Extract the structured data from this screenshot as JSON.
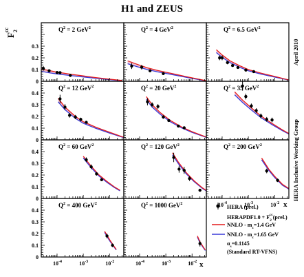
{
  "title": "H1 and ZEUS",
  "ylabel": "F",
  "ylabel_sub": "2",
  "ylabel_sup": "cc",
  "xlabel": "x",
  "side_labels": {
    "top": "April 2010",
    "middle": "HERA Inclusive Working Group"
  },
  "legend": {
    "items": [
      {
        "key": "data",
        "label": "HERA (prel.)",
        "color": "#000000"
      },
      {
        "key": "herapdf",
        "label": "HERAPDF1.0 + F2cc(prel.)",
        "label_main": "HERAPDF1.0 + F",
        "label_sub": "2",
        "label_sup": "cc",
        "label_end": "(prel.)",
        "color": "#000000"
      },
      {
        "key": "mc14",
        "label": "NNLO - mc=1.4 GeV",
        "label_main": "NNLO  -  m",
        "label_sub": "c",
        "label_end": "=1.4 GeV",
        "color": "#e41a1c"
      },
      {
        "key": "mc165",
        "label": "NNLO - mc=1.65 GeV",
        "label_main": "NNLO  -  m",
        "label_sub": "c",
        "label_end": "=1.65 GeV",
        "color": "#3a3ad9"
      }
    ],
    "alpha_text": "α",
    "alpha_sub": "s",
    "alpha_value": "=0.1145",
    "scheme": "(Standard RT-VFNS)"
  },
  "colors": {
    "band": "#e8a0b0",
    "red": "#e41a1c",
    "blue": "#3a3ad9",
    "data": "#000000"
  },
  "chart_data": {
    "type": "scatter",
    "title": "H1 and ZEUS",
    "xlabel": "x",
    "ylabel": "F2cc",
    "xscale": "log",
    "xlim": [
      2.5e-05,
      0.035
    ],
    "ylim": [
      0,
      0.5
    ],
    "x_ticks": [
      "10-4",
      "10-3",
      "10-2"
    ],
    "y_ticks": [
      "0",
      "0.1",
      "0.2",
      "0.3",
      "0.4"
    ],
    "y_ticks_top_row": [
      "0",
      "0.1",
      "0.2",
      "0.3"
    ],
    "panels": [
      {
        "label": "Q2 = 2 GeV2",
        "q2": "2",
        "points": [
          [
            3e-05,
            0.11,
            0.02
          ],
          [
            5e-05,
            0.09,
            0.012
          ],
          [
            0.0001,
            0.075,
            0.01
          ],
          [
            0.00013,
            0.074,
            0.01
          ],
          [
            0.00032,
            0.05,
            0.006
          ]
        ],
        "curves": {
          "red": [
            [
              2.5e-05,
              0.105
            ],
            [
              5e-05,
              0.092
            ],
            [
              0.0001,
              0.078
            ],
            [
              0.0003,
              0.062
            ],
            [
              0.001,
              0.046
            ],
            [
              0.003,
              0.032
            ],
            [
              0.01,
              0.018
            ],
            [
              0.03,
              0.007
            ]
          ],
          "blue": [
            [
              2.5e-05,
              0.085
            ],
            [
              5e-05,
              0.073
            ],
            [
              0.0001,
              0.063
            ],
            [
              0.0003,
              0.05
            ],
            [
              0.001,
              0.037
            ],
            [
              0.003,
              0.026
            ],
            [
              0.01,
              0.014
            ],
            [
              0.03,
              0.005
            ]
          ]
        }
      },
      {
        "label": "Q2 = 4 GeV2",
        "q2": "4",
        "points": [
          [
            5e-05,
            0.13,
            0.025
          ],
          [
            0.00012,
            0.12,
            0.02
          ],
          [
            0.00025,
            0.09,
            0.01
          ],
          [
            0.0008,
            0.066,
            0.008
          ]
        ],
        "curves": {
          "red": [
            [
              3.5e-05,
              0.175
            ],
            [
              8e-05,
              0.145
            ],
            [
              0.0002,
              0.115
            ],
            [
              0.0005,
              0.092
            ],
            [
              0.002,
              0.063
            ],
            [
              0.006,
              0.04
            ],
            [
              0.02,
              0.016
            ],
            [
              0.035,
              0.005
            ]
          ],
          "blue": [
            [
              3.5e-05,
              0.15
            ],
            [
              8e-05,
              0.125
            ],
            [
              0.0002,
              0.1
            ],
            [
              0.0005,
              0.08
            ],
            [
              0.002,
              0.055
            ],
            [
              0.006,
              0.034
            ],
            [
              0.02,
              0.013
            ],
            [
              0.035,
              0.004
            ]
          ]
        }
      },
      {
        "label": "Q2 = 6.5 GeV2",
        "q2": "6.5",
        "points": [
          [
            8e-05,
            0.2,
            0.02
          ],
          [
            0.0001,
            0.2,
            0.02
          ],
          [
            0.00016,
            0.16,
            0.015
          ],
          [
            0.00025,
            0.135,
            0.01
          ],
          [
            0.0004,
            0.118,
            0.01
          ],
          [
            0.0008,
            0.096,
            0.008
          ],
          [
            0.0016,
            0.083,
            0.008
          ]
        ],
        "curves": {
          "red": [
            [
              6e-05,
              0.27
            ],
            [
              0.0001,
              0.225
            ],
            [
              0.0002,
              0.175
            ],
            [
              0.0005,
              0.13
            ],
            [
              0.001,
              0.1
            ],
            [
              0.003,
              0.07
            ],
            [
              0.01,
              0.042
            ],
            [
              0.035,
              0.012
            ]
          ],
          "blue": [
            [
              6e-05,
              0.245
            ],
            [
              0.0001,
              0.205
            ],
            [
              0.0002,
              0.16
            ],
            [
              0.0005,
              0.117
            ],
            [
              0.001,
              0.09
            ],
            [
              0.003,
              0.062
            ],
            [
              0.01,
              0.036
            ],
            [
              0.035,
              0.01
            ]
          ]
        }
      },
      {
        "label": "Q2 = 12 GeV2",
        "q2": "12",
        "points": [
          [
            0.00013,
            0.35,
            0.035
          ],
          [
            0.0002,
            0.28,
            0.025
          ],
          [
            0.0003,
            0.21,
            0.02
          ],
          [
            0.0005,
            0.195,
            0.018
          ],
          [
            0.0008,
            0.175,
            0.015
          ],
          [
            0.0013,
            0.15,
            0.012
          ]
        ],
        "curves": {
          "red": [
            [
              0.00011,
              0.355
            ],
            [
              0.0002,
              0.28
            ],
            [
              0.0005,
              0.2
            ],
            [
              0.001,
              0.155
            ],
            [
              0.003,
              0.108
            ],
            [
              0.01,
              0.065
            ],
            [
              0.035,
              0.022
            ]
          ],
          "blue": [
            [
              0.00011,
              0.325
            ],
            [
              0.0002,
              0.258
            ],
            [
              0.0005,
              0.183
            ],
            [
              0.001,
              0.142
            ],
            [
              0.003,
              0.098
            ],
            [
              0.01,
              0.058
            ],
            [
              0.035,
              0.019
            ]
          ]
        }
      },
      {
        "label": "Q2 = 20 GeV2",
        "q2": "20",
        "points": [
          [
            0.0002,
            0.325,
            0.03
          ],
          [
            0.0003,
            0.3,
            0.02
          ],
          [
            0.0005,
            0.285,
            0.02
          ],
          [
            0.0008,
            0.195,
            0.015
          ],
          [
            0.0013,
            0.165,
            0.012
          ],
          [
            0.003,
            0.118,
            0.01
          ],
          [
            0.005,
            0.103,
            0.008
          ]
        ],
        "curves": {
          "red": [
            [
              0.00018,
              0.37
            ],
            [
              0.0003,
              0.3
            ],
            [
              0.0006,
              0.235
            ],
            [
              0.0015,
              0.165
            ],
            [
              0.004,
              0.11
            ],
            [
              0.01,
              0.07
            ],
            [
              0.035,
              0.024
            ]
          ],
          "blue": [
            [
              0.00018,
              0.345
            ],
            [
              0.0003,
              0.28
            ],
            [
              0.0006,
              0.22
            ],
            [
              0.0015,
              0.154
            ],
            [
              0.004,
              0.102
            ],
            [
              0.01,
              0.064
            ],
            [
              0.035,
              0.021
            ]
          ]
        }
      },
      {
        "label": "Q2 = 35 GeV2",
        "q2": "35",
        "points": [
          [
            0.0006,
            0.46,
            0.04
          ],
          [
            0.0008,
            0.37,
            0.025
          ],
          [
            0.0013,
            0.29,
            0.02
          ],
          [
            0.002,
            0.25,
            0.02
          ],
          [
            0.003,
            0.205,
            0.02
          ],
          [
            0.005,
            0.175,
            0.02
          ],
          [
            0.008,
            0.17,
            0.02
          ]
        ],
        "curves": {
          "red": [
            [
              0.0003,
              0.41
            ],
            [
              0.0006,
              0.34
            ],
            [
              0.0012,
              0.28
            ],
            [
              0.003,
              0.205
            ],
            [
              0.008,
              0.14
            ],
            [
              0.02,
              0.085
            ],
            [
              0.035,
              0.055
            ]
          ],
          "blue": [
            [
              0.0003,
              0.385
            ],
            [
              0.0006,
              0.32
            ],
            [
              0.0012,
              0.262
            ],
            [
              0.003,
              0.19
            ],
            [
              0.008,
              0.13
            ],
            [
              0.02,
              0.078
            ],
            [
              0.035,
              0.05
            ]
          ]
        }
      },
      {
        "label": "Q2 = 60 GeV2",
        "q2": "60",
        "points": [
          [
            0.0013,
            0.33,
            0.02
          ],
          [
            0.002,
            0.27,
            0.02
          ],
          [
            0.0032,
            0.21,
            0.015
          ],
          [
            0.005,
            0.16,
            0.012
          ]
        ],
        "curves": {
          "red": [
            [
              0.001,
              0.36
            ],
            [
              0.002,
              0.275
            ],
            [
              0.004,
              0.2
            ],
            [
              0.008,
              0.145
            ],
            [
              0.015,
              0.1
            ],
            [
              0.025,
              0.07
            ]
          ],
          "blue": [
            [
              0.001,
              0.345
            ],
            [
              0.002,
              0.262
            ],
            [
              0.004,
              0.19
            ],
            [
              0.008,
              0.137
            ],
            [
              0.015,
              0.094
            ],
            [
              0.025,
              0.065
            ]
          ]
        }
      },
      {
        "label": "Q2 = 120 GeV2",
        "q2": "120",
        "points": [
          [
            0.002,
            0.35,
            0.04
          ],
          [
            0.0032,
            0.25,
            0.03
          ],
          [
            0.005,
            0.24,
            0.03
          ],
          [
            0.008,
            0.17,
            0.02
          ],
          [
            0.02,
            0.07,
            0.01
          ]
        ],
        "curves": {
          "red": [
            [
              0.0018,
              0.39
            ],
            [
              0.003,
              0.31
            ],
            [
              0.006,
              0.22
            ],
            [
              0.012,
              0.15
            ],
            [
              0.025,
              0.09
            ],
            [
              0.035,
              0.068
            ]
          ],
          "blue": [
            [
              0.0018,
              0.372
            ],
            [
              0.003,
              0.297
            ],
            [
              0.006,
              0.21
            ],
            [
              0.012,
              0.143
            ],
            [
              0.025,
              0.085
            ],
            [
              0.035,
              0.064
            ]
          ]
        }
      },
      {
        "label": "Q2 = 200 GeV2",
        "q2": "200",
        "points": [
          [
            0.005,
            0.235,
            0.02
          ],
          [
            0.013,
            0.155,
            0.015
          ]
        ],
        "curves": {
          "red": [
            [
              0.0032,
              0.345
            ],
            [
              0.006,
              0.25
            ],
            [
              0.01,
              0.19
            ],
            [
              0.02,
              0.12
            ],
            [
              0.035,
              0.085
            ]
          ],
          "blue": [
            [
              0.0032,
              0.33
            ],
            [
              0.006,
              0.24
            ],
            [
              0.01,
              0.18
            ],
            [
              0.02,
              0.113
            ],
            [
              0.035,
              0.08
            ]
          ]
        }
      },
      {
        "label": "Q2 = 400 GeV2",
        "q2": "400",
        "points": [
          [
            0.008,
            0.18,
            0.02
          ],
          [
            0.013,
            0.1,
            0.015
          ]
        ],
        "curves": {
          "red": [
            [
              0.0065,
              0.22
            ],
            [
              0.01,
              0.15
            ],
            [
              0.015,
              0.09
            ],
            [
              0.018,
              0.065
            ]
          ],
          "blue": [
            [
              0.0065,
              0.21
            ],
            [
              0.01,
              0.14
            ],
            [
              0.015,
              0.085
            ],
            [
              0.018,
              0.06
            ]
          ]
        }
      },
      {
        "label": "Q2 = 1000 GeV2",
        "q2": "1000",
        "points": [
          [
            0.02,
            0.115,
            0.025
          ]
        ],
        "curves": {
          "red": [
            [
              0.016,
              0.18
            ],
            [
              0.02,
              0.13
            ],
            [
              0.026,
              0.09
            ],
            [
              0.032,
              0.06
            ]
          ],
          "blue": [
            [
              0.016,
              0.17
            ],
            [
              0.02,
              0.122
            ],
            [
              0.026,
              0.084
            ],
            [
              0.032,
              0.056
            ]
          ]
        }
      }
    ]
  }
}
